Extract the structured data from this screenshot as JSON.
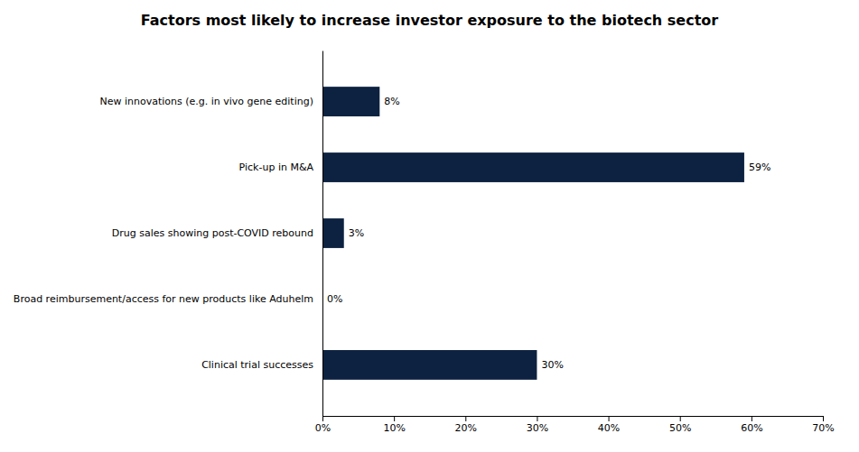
{
  "chart_data": {
    "type": "bar",
    "orientation": "horizontal",
    "title": "Factors most likely to increase investor exposure to the biotech sector",
    "categories": [
      "New innovations (e.g. in vivo gene editing)",
      "Pick-up in M&A",
      "Drug sales showing post-COVID rebound",
      "Broad reimbursement/access for new products like Aduhelm",
      "Clinical trial successes"
    ],
    "values": [
      8,
      59,
      3,
      0,
      30
    ],
    "value_labels": [
      "8%",
      "59%",
      "3%",
      "0%",
      "30%"
    ],
    "data_labels": true,
    "color": "#0d2240",
    "xlim": [
      0,
      70
    ],
    "xticks": [
      {
        "value": 0,
        "label": "0%"
      },
      {
        "value": 10,
        "label": "10%"
      },
      {
        "value": 20,
        "label": "20%"
      },
      {
        "value": 30,
        "label": "30%"
      },
      {
        "value": 40,
        "label": "40%"
      },
      {
        "value": 50,
        "label": "50%"
      },
      {
        "value": 60,
        "label": "60%"
      },
      {
        "value": 70,
        "label": "70%"
      }
    ],
    "grid": false
  }
}
